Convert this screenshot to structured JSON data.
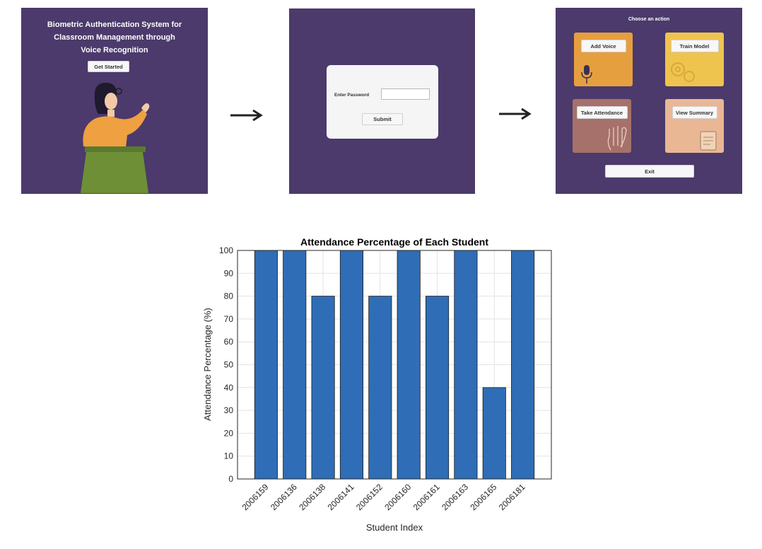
{
  "screen1": {
    "title_lines": [
      "Biometric Authentication System for",
      "Classroom Management through",
      "Voice Recognition"
    ],
    "get_started_label": "Get Started"
  },
  "screen2": {
    "password_label": "Enter Password",
    "submit_label": "Submit"
  },
  "screen3": {
    "title": "Choose an action",
    "add_voice_label": "Add Voice",
    "train_model_label": "Train Model",
    "take_attendance_label": "Take Attendance",
    "view_summary_label": "View Summary",
    "exit_label": "Exit"
  },
  "colors": {
    "panel_bg": "#4b3a6b",
    "bar_fill": "#2f6db6"
  },
  "icons": [
    "woman-illustration",
    "right-arrow-icon",
    "microphone-icon",
    "gears-icon",
    "hand-icon",
    "clipboard-icon"
  ],
  "chart_data": {
    "type": "bar",
    "title": "Attendance Percentage of Each Student",
    "xlabel": "Student Index",
    "ylabel": "Attendance Percentage (%)",
    "categories": [
      "2006159",
      "2006136",
      "2006138",
      "2006141",
      "2006152",
      "2006160",
      "2006161",
      "2006163",
      "2006165",
      "2006181"
    ],
    "values": [
      100,
      100,
      80,
      100,
      80,
      100,
      80,
      100,
      40,
      100
    ],
    "ylim": [
      0,
      100
    ],
    "yticks": [
      0,
      10,
      20,
      30,
      40,
      50,
      60,
      70,
      80,
      90,
      100
    ],
    "grid": true
  }
}
